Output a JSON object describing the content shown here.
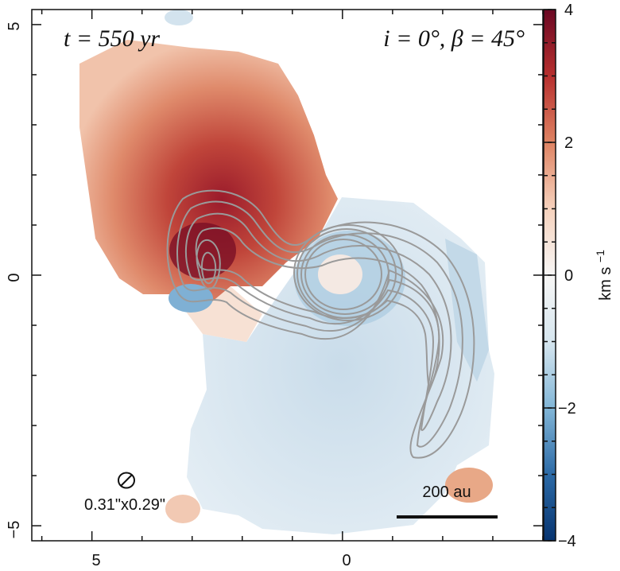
{
  "chart_data": {
    "type": "heatmap",
    "title": "",
    "xlabel": "",
    "ylabel": "",
    "xlim": [
      6.2,
      -4.0
    ],
    "ylim": [
      -5.3,
      5.3
    ],
    "x_ticks": [
      5,
      0
    ],
    "y_ticks": [
      5,
      0,
      -5
    ],
    "x_tick_labels": [
      "5",
      "0"
    ],
    "y_tick_labels": [
      "5",
      "0",
      "−5"
    ],
    "colorbar": {
      "label": "km s",
      "label_superscript": "−1",
      "range": [
        -4,
        4
      ],
      "ticks": [
        4,
        2,
        0,
        -2,
        -4
      ],
      "tick_labels": [
        "4",
        "2",
        "0",
        "−2",
        "−4"
      ],
      "colormap": "RdBu_r",
      "colors": [
        "#073470",
        "#2c6aa6",
        "#82b6d7",
        "#d6e6ef",
        "#f7f6f5",
        "#f6d2bd",
        "#de8363",
        "#b7302f",
        "#6a0823"
      ]
    },
    "annotations": {
      "time_label": "t = 550 yr",
      "params_label": "i = 0°, β = 45°",
      "beam_label": "0.31\"x0.29\"",
      "scale_bar_label": "200 au"
    },
    "contour_color": "#9a9a9a"
  }
}
